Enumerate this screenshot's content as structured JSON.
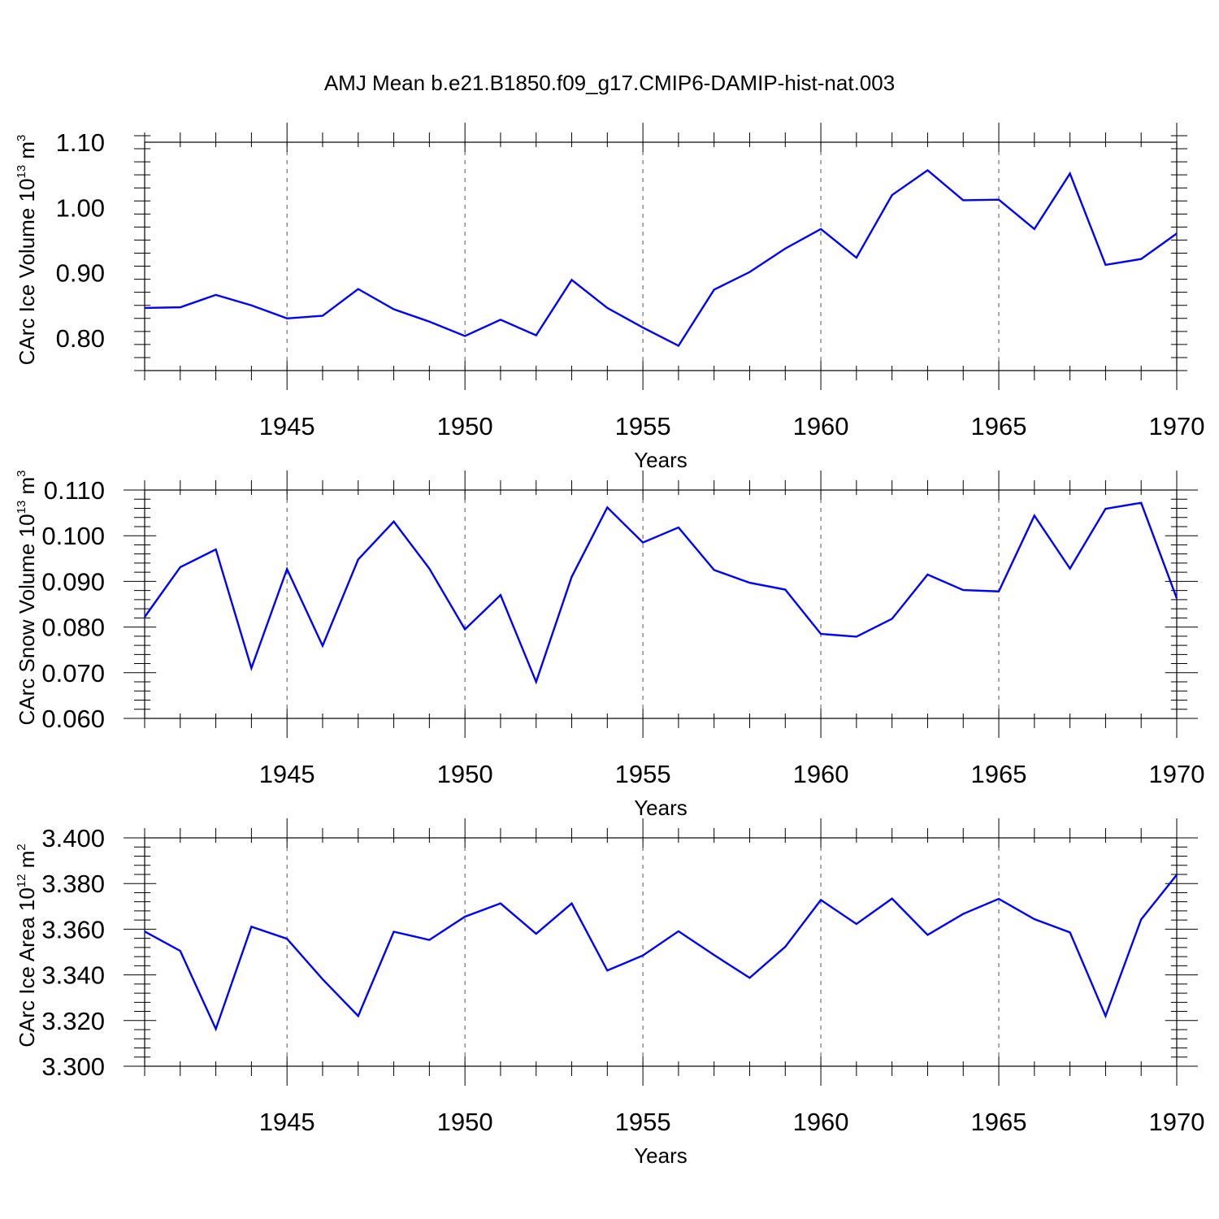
{
  "title": "AMJ Mean b.e21.B1850.f09_g17.CMIP6-DAMIP-hist-nat.003",
  "chart_data": [
    {
      "type": "line",
      "title": "",
      "xlabel": "Years",
      "ylabel_main": "CArc Ice Volume 10",
      "ylabel_sup1": "13",
      "ylabel_mid": " m",
      "ylabel_sup2": "3",
      "xlim": [
        1941,
        1970
      ],
      "ylim": [
        0.75,
        1.1
      ],
      "grid": "x-dashed",
      "color": "#0000ff",
      "x": [
        1941,
        1942,
        1943,
        1944,
        1945,
        1946,
        1947,
        1948,
        1949,
        1950,
        1951,
        1952,
        1953,
        1954,
        1955,
        1956,
        1957,
        1958,
        1959,
        1960,
        1961,
        1962,
        1963,
        1964,
        1965,
        1966,
        1967,
        1968,
        1969,
        1970
      ],
      "values": [
        0.846,
        0.847,
        0.866,
        0.85,
        0.83,
        0.834,
        0.875,
        0.844,
        0.825,
        0.803,
        0.828,
        0.804,
        0.889,
        0.846,
        0.816,
        0.788,
        0.874,
        0.901,
        0.937,
        0.967,
        0.923,
        1.019,
        1.057,
        1.011,
        1.012,
        0.967,
        1.052,
        0.912,
        0.921,
        0.96
      ],
      "xticks": [
        "1945",
        "1950",
        "1955",
        "1960",
        "1965",
        "1970"
      ],
      "yticks": [
        "0.80",
        "0.90",
        "1.00",
        "1.10"
      ]
    },
    {
      "type": "line",
      "title": "",
      "xlabel": "Years",
      "ylabel_main": "CArc Snow Volume 10",
      "ylabel_sup1": "13",
      "ylabel_mid": " m",
      "ylabel_sup2": "3",
      "xlim": [
        1941,
        1970
      ],
      "ylim": [
        0.06,
        0.11
      ],
      "grid": "x-dashed",
      "color": "#0000ff",
      "x": [
        1941,
        1942,
        1943,
        1944,
        1945,
        1946,
        1947,
        1948,
        1949,
        1950,
        1951,
        1952,
        1953,
        1954,
        1955,
        1956,
        1957,
        1958,
        1959,
        1960,
        1961,
        1962,
        1963,
        1964,
        1965,
        1966,
        1967,
        1968,
        1969,
        1970
      ],
      "values": [
        0.0822,
        0.0931,
        0.097,
        0.071,
        0.0927,
        0.0759,
        0.0948,
        0.1031,
        0.0928,
        0.0795,
        0.087,
        0.068,
        0.091,
        0.1062,
        0.0985,
        0.1018,
        0.0925,
        0.0897,
        0.0882,
        0.0785,
        0.0779,
        0.0818,
        0.0915,
        0.0881,
        0.0878,
        0.1044,
        0.0928,
        0.1059,
        0.1072,
        0.0863
      ],
      "xticks": [
        "1945",
        "1950",
        "1955",
        "1960",
        "1965",
        "1970"
      ],
      "yticks": [
        "0.060",
        "0.070",
        "0.080",
        "0.090",
        "0.100",
        "0.110"
      ]
    },
    {
      "type": "line",
      "title": "",
      "xlabel": "Years",
      "ylabel_main": "CArc Ice Area 10",
      "ylabel_sup1": "12",
      "ylabel_mid": " m",
      "ylabel_sup2": "2",
      "xlim": [
        1941,
        1970
      ],
      "ylim": [
        3.3,
        3.4
      ],
      "grid": "x-dashed",
      "color": "#0000ff",
      "x": [
        1941,
        1942,
        1943,
        1944,
        1945,
        1946,
        1947,
        1948,
        1949,
        1950,
        1951,
        1952,
        1953,
        1954,
        1955,
        1956,
        1957,
        1958,
        1959,
        1960,
        1961,
        1962,
        1963,
        1964,
        1965,
        1966,
        1967,
        1968,
        1969,
        1970
      ],
      "values": [
        3.359,
        3.3505,
        3.3163,
        3.3611,
        3.3558,
        3.3381,
        3.322,
        3.3589,
        3.3553,
        3.3655,
        3.3713,
        3.358,
        3.3713,
        3.3419,
        3.3485,
        3.3591,
        3.3487,
        3.3387,
        3.3523,
        3.3728,
        3.3623,
        3.3734,
        3.3575,
        3.3667,
        3.3733,
        3.3644,
        3.3586,
        3.322,
        3.3643,
        3.3838
      ],
      "xticks": [
        "1945",
        "1950",
        "1955",
        "1960",
        "1965",
        "1970"
      ],
      "yticks": [
        "3.300",
        "3.320",
        "3.340",
        "3.360",
        "3.380",
        "3.400"
      ]
    }
  ]
}
